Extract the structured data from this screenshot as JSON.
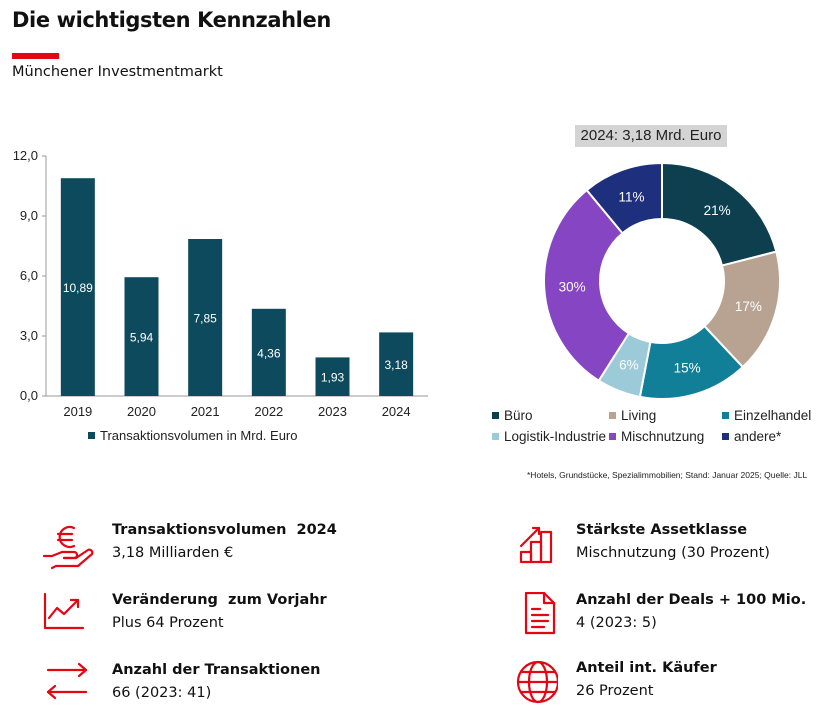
{
  "header": {
    "title": "Die wichtigsten Kennzahlen",
    "subtitle": "Münchener Investmentmarkt",
    "accent_color": "#e30613"
  },
  "chart_data": [
    {
      "type": "bar",
      "categories": [
        "2019",
        "2020",
        "2021",
        "2022",
        "2023",
        "2024"
      ],
      "values": [
        10.89,
        5.94,
        7.85,
        4.36,
        1.93,
        3.18
      ],
      "value_labels": [
        "10,89",
        "5,94",
        "7,85",
        "4,36",
        "1,93",
        "3,18"
      ],
      "series_name": "Transaktionsvolumen in Mrd. Euro",
      "ylim": [
        0,
        12
      ],
      "yticks": [
        0,
        3,
        6,
        9,
        12
      ],
      "ytick_labels": [
        "0,0",
        "3,0",
        "6,0",
        "9,0",
        "12,0"
      ],
      "color": "#0d4a5e",
      "grid": false,
      "legend_position": "bottom"
    },
    {
      "type": "pie",
      "title": "2024: 3,18 Mrd. Euro",
      "donut": true,
      "slices": [
        {
          "name": "Büro",
          "value": 21,
          "label": "21%",
          "color": "#0d3f4f"
        },
        {
          "name": "Living",
          "value": 17,
          "label": "17%",
          "color": "#b8a392"
        },
        {
          "name": "Einzelhandel",
          "value": 15,
          "label": "15%",
          "color": "#127f99"
        },
        {
          "name": "Logistik-Industrie",
          "value": 6,
          "label": "6%",
          "color": "#9ccad8"
        },
        {
          "name": "Mischnutzung",
          "value": 30,
          "label": "30%",
          "color": "#8645c2"
        },
        {
          "name": "andere*",
          "value": 11,
          "label": "11%",
          "color": "#1e2f7e"
        }
      ],
      "legend_position": "bottom",
      "footnote": "*Hotels, Grundstücke, Spezialimmobilien; Stand: Januar 2025; Quelle: JLL"
    }
  ],
  "kpis": [
    {
      "label": "Transaktionsvolumen  2024",
      "value": "3,18 Milliarden €",
      "icon": "euro-hand-icon"
    },
    {
      "label": "Veränderung  zum Vorjahr",
      "value": "Plus 64 Prozent",
      "icon": "trend-up-chart-icon"
    },
    {
      "label": "Anzahl der Transaktionen",
      "value": "66 (2023: 41)",
      "icon": "exchange-arrows-icon"
    },
    {
      "label": "Stärkste Assetklasse",
      "value": "Mischnutzung (30 Prozent)",
      "icon": "growth-steps-icon"
    },
    {
      "label": "Anzahl der Deals + 100 Mio.",
      "value": "4 (2023: 5)",
      "icon": "document-icon"
    },
    {
      "label": "Anteil int. Käufer",
      "value": "26 Prozent",
      "icon": "globe-icon"
    }
  ],
  "icon_color": "#e30613"
}
